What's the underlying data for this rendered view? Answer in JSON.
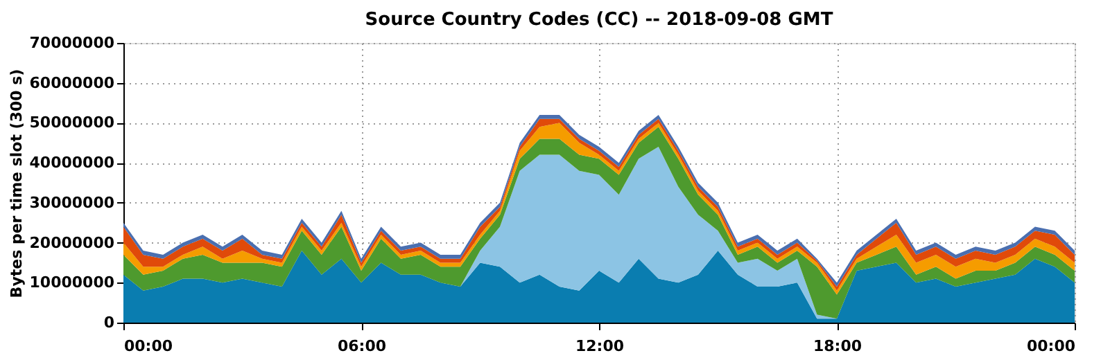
{
  "chart_data": {
    "type": "area",
    "stacked": true,
    "title": "Source Country Codes (CC) -- 2018-09-08 GMT",
    "ylabel": "Bytes per time slot (300 s)",
    "x": [
      0,
      0.5,
      1,
      1.5,
      2,
      2.5,
      3,
      3.5,
      4,
      4.5,
      5,
      5.5,
      6,
      6.5,
      7,
      7.5,
      8,
      8.5,
      9,
      9.5,
      10,
      10.5,
      11,
      11.5,
      12,
      12.5,
      13,
      13.5,
      14,
      14.5,
      15,
      15.5,
      16,
      16.5,
      17,
      17.5,
      18,
      18.5,
      19,
      19.5,
      20,
      20.5,
      21,
      21.5,
      22,
      22.5,
      23,
      23.5,
      24
    ],
    "xlim": [
      0,
      24
    ],
    "xticks": [
      {
        "value": 0,
        "label": "00:00"
      },
      {
        "value": 6,
        "label": "06:00"
      },
      {
        "value": 12,
        "label": "12:00"
      },
      {
        "value": 18,
        "label": "18:00"
      },
      {
        "value": 24,
        "label": "00:00"
      }
    ],
    "ylim": [
      0,
      70000000
    ],
    "yticks": [
      0,
      10000000,
      20000000,
      30000000,
      40000000,
      50000000,
      60000000,
      70000000
    ],
    "grid": true,
    "series": [
      {
        "color": "#0a7db0",
        "values": [
          12000000,
          8000000,
          9000000,
          11000000,
          11000000,
          10000000,
          11000000,
          10000000,
          9000000,
          18000000,
          12000000,
          16000000,
          10000000,
          15000000,
          12000000,
          12000000,
          10000000,
          9000000,
          15000000,
          14000000,
          10000000,
          12000000,
          9000000,
          8000000,
          13000000,
          10000000,
          16000000,
          11000000,
          10000000,
          12000000,
          18000000,
          12000000,
          9000000,
          9000000,
          10000000,
          1000000,
          1000000,
          13000000,
          14000000,
          15000000,
          10000000,
          11000000,
          9000000,
          10000000,
          11000000,
          12000000,
          16000000,
          14000000,
          10000000
        ]
      },
      {
        "color": "#8cc4e4",
        "values": [
          0,
          0,
          0,
          0,
          0,
          0,
          0,
          0,
          0,
          0,
          0,
          0,
          0,
          0,
          0,
          0,
          0,
          0,
          3000000,
          10000000,
          28000000,
          30000000,
          33000000,
          30000000,
          24000000,
          22000000,
          25000000,
          33000000,
          24000000,
          15000000,
          5000000,
          3000000,
          7000000,
          4000000,
          6000000,
          1000000,
          0,
          0,
          0,
          0,
          0,
          0,
          0,
          0,
          0,
          0,
          0,
          0,
          0
        ]
      },
      {
        "color": "#4e9a2e",
        "values": [
          5000000,
          4000000,
          4000000,
          5000000,
          6000000,
          5000000,
          4000000,
          5000000,
          5000000,
          5000000,
          5000000,
          8000000,
          3000000,
          6000000,
          4000000,
          5000000,
          4000000,
          5000000,
          3000000,
          3000000,
          3000000,
          4000000,
          4000000,
          4000000,
          4000000,
          5000000,
          4000000,
          5000000,
          7000000,
          5000000,
          4000000,
          2000000,
          3000000,
          2000000,
          2000000,
          12000000,
          6000000,
          2000000,
          3000000,
          4000000,
          2000000,
          3000000,
          2000000,
          3000000,
          2000000,
          3000000,
          3000000,
          3000000,
          3000000
        ]
      },
      {
        "color": "#f59c00",
        "values": [
          3000000,
          2000000,
          1000000,
          1000000,
          2000000,
          1000000,
          3000000,
          1000000,
          1000000,
          1000000,
          1000000,
          1000000,
          1000000,
          1000000,
          1000000,
          1000000,
          1000000,
          1000000,
          1000000,
          1000000,
          2000000,
          3000000,
          4000000,
          3000000,
          1000000,
          1000000,
          1000000,
          1000000,
          1000000,
          1000000,
          1000000,
          1000000,
          1000000,
          1000000,
          1000000,
          1000000,
          1000000,
          1000000,
          2000000,
          3000000,
          3000000,
          3000000,
          3000000,
          3000000,
          2000000,
          2000000,
          2000000,
          2000000,
          2000000
        ]
      },
      {
        "color": "#e04a0a",
        "values": [
          4000000,
          3000000,
          2000000,
          2000000,
          2000000,
          2000000,
          3000000,
          1000000,
          1000000,
          1000000,
          1000000,
          2000000,
          1000000,
          1000000,
          1000000,
          1000000,
          1000000,
          1000000,
          2000000,
          1000000,
          1000000,
          2000000,
          1000000,
          1000000,
          1000000,
          1000000,
          1000000,
          1000000,
          1000000,
          1000000,
          1000000,
          1000000,
          1000000,
          1000000,
          1000000,
          500000,
          1000000,
          1000000,
          2000000,
          3000000,
          2000000,
          2000000,
          2000000,
          2000000,
          2000000,
          2000000,
          2000000,
          3000000,
          2000000
        ]
      },
      {
        "color": "#4a6fb0",
        "values": [
          1000000,
          1000000,
          1000000,
          1000000,
          1000000,
          1000000,
          1000000,
          1000000,
          1000000,
          1000000,
          1000000,
          1000000,
          1000000,
          1000000,
          1000000,
          1000000,
          1000000,
          1000000,
          1000000,
          1000000,
          1000000,
          1000000,
          1000000,
          1000000,
          1000000,
          1000000,
          1000000,
          1000000,
          1000000,
          1000000,
          1000000,
          1000000,
          1000000,
          1000000,
          1000000,
          500000,
          1000000,
          1000000,
          1000000,
          1000000,
          1000000,
          1000000,
          1000000,
          1000000,
          1000000,
          1000000,
          1000000,
          1000000,
          1000000
        ]
      }
    ]
  }
}
